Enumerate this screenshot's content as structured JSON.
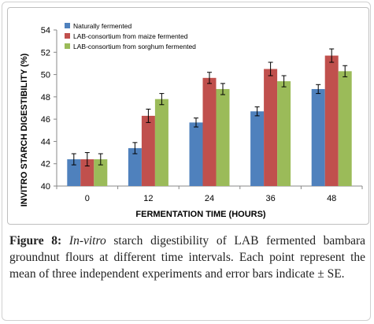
{
  "chart_data": {
    "type": "bar",
    "categories": [
      "0",
      "12",
      "24",
      "36",
      "48"
    ],
    "xlabel": "FERMENTATION TIME (HOURS)",
    "ylabel": "INVITRO STARCH DIGESTIBILITY (%)",
    "ylim": [
      40,
      54
    ],
    "yticks": [
      40,
      42,
      44,
      46,
      48,
      50,
      52,
      54
    ],
    "grid": false,
    "legend_position": "top-left",
    "series": [
      {
        "name": "Naturally fermented",
        "color": "#4f81bd",
        "values": [
          42.4,
          43.4,
          45.7,
          46.7,
          48.7
        ],
        "errors": [
          0.5,
          0.5,
          0.4,
          0.4,
          0.4
        ]
      },
      {
        "name": "LAB-consortium from maize fermented",
        "color": "#c0504d",
        "values": [
          42.4,
          46.3,
          49.7,
          50.5,
          51.7
        ],
        "errors": [
          0.6,
          0.6,
          0.5,
          0.6,
          0.6
        ]
      },
      {
        "name": "LAB-consortium from sorghum fermented",
        "color": "#9bbb59",
        "values": [
          42.4,
          47.8,
          48.7,
          49.4,
          50.3
        ],
        "errors": [
          0.5,
          0.5,
          0.5,
          0.5,
          0.5
        ]
      }
    ]
  },
  "caption": {
    "label": "Figure 8:",
    "title_italic": "In-vitro",
    "text": " starch digestibility of LAB fermented bambara groundnut flours at different time intervals. Each point represent the mean of three independent experiments and error bars indicate ± SE."
  },
  "colors": {
    "axis": "#888888",
    "text": "#000000",
    "error_bar": "#000000"
  }
}
